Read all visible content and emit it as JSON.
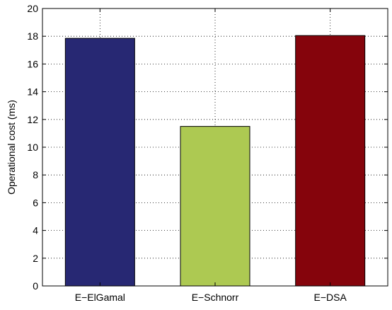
{
  "chart_data": {
    "type": "bar",
    "title": "",
    "xlabel": "",
    "ylabel": "Operational cost (ms)",
    "categories": [
      "E−ElGamal",
      "E−Schnorr",
      "E−DSA"
    ],
    "values": [
      17.85,
      11.5,
      18.05
    ],
    "ylim": [
      0,
      20
    ],
    "yticks": [
      0,
      2,
      4,
      6,
      8,
      10,
      12,
      14,
      16,
      18,
      20
    ],
    "xlim": [
      0.5,
      3.5
    ],
    "grid": true,
    "legend": "none",
    "colors": [
      "#272873",
      "#adc952",
      "#85040c"
    ]
  }
}
